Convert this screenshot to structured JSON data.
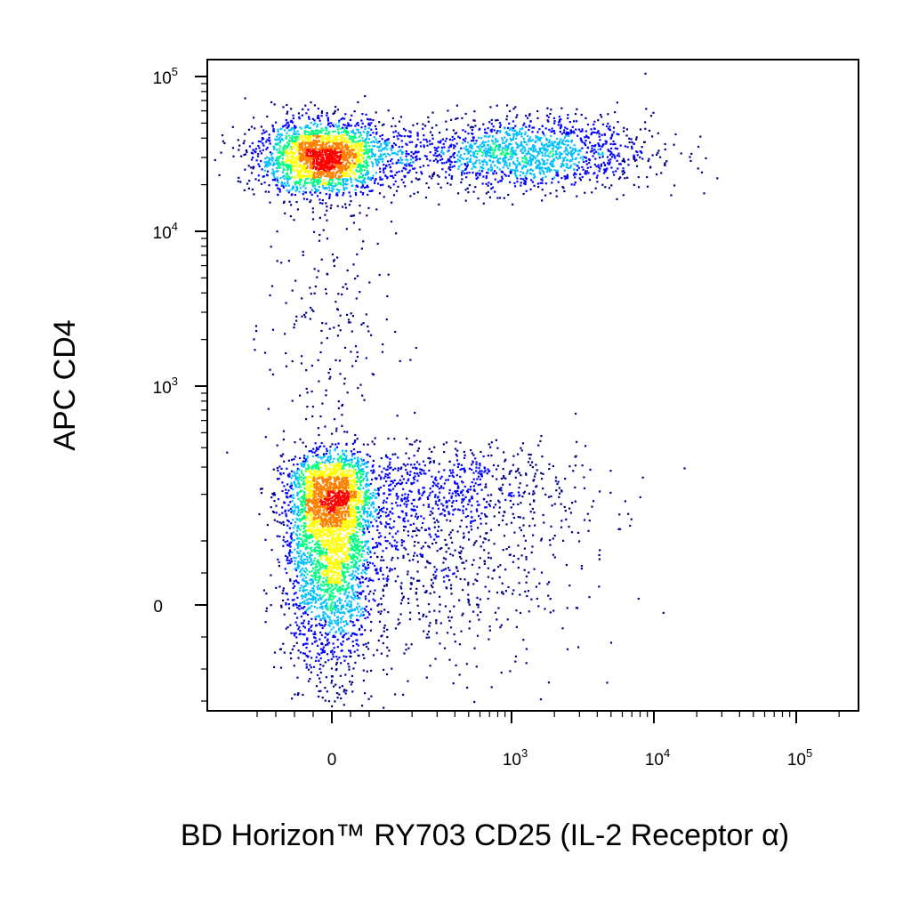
{
  "chart_data": {
    "type": "scatter",
    "title": "",
    "xlabel": "BD Horizon™ RY703 CD25 (IL-2 Receptor α)",
    "ylabel": "APC CD4",
    "x_scale": "biexponential",
    "y_scale": "biexponential",
    "xlim": [
      -250,
      250000
    ],
    "ylim": [
      -250,
      250000
    ],
    "x_ticks": [
      {
        "value": 0,
        "base": "0",
        "exp": ""
      },
      {
        "value": 1000,
        "base": "10",
        "exp": "3"
      },
      {
        "value": 10000,
        "base": "10",
        "exp": "4"
      },
      {
        "value": 100000,
        "base": "10",
        "exp": "5"
      }
    ],
    "y_ticks": [
      {
        "value": 0,
        "base": "0",
        "exp": ""
      },
      {
        "value": 1000,
        "base": "10",
        "exp": "3"
      },
      {
        "value": 10000,
        "base": "10",
        "exp": "4"
      },
      {
        "value": 100000,
        "base": "10",
        "exp": "5"
      }
    ],
    "grid": false,
    "legend": "none",
    "density_colormap": [
      "#00008b",
      "#0000ff",
      "#00bfff",
      "#00ff80",
      "#ffff00",
      "#ff8000",
      "#ff0000"
    ],
    "populations": [
      {
        "x_center": -20,
        "x_spread": 90,
        "y_center": 30000,
        "y_spread_log": 0.12,
        "count": 2200
      },
      {
        "x_center": 1200,
        "x_spread_log": 0.45,
        "y_center": 32000,
        "y_spread_log": 0.12,
        "count": 1500
      },
      {
        "x_center": -10,
        "x_spread": 60,
        "y_center": 120,
        "y_spread": 110,
        "count": 3200
      },
      {
        "x_center": 250,
        "x_spread_log": 0.55,
        "y_center": 150,
        "y_spread": 120,
        "count": 1500
      },
      {
        "x_center": -15,
        "x_spread": 80,
        "y_center": 2500,
        "y_spread_log": 0.55,
        "count": 220
      }
    ]
  }
}
